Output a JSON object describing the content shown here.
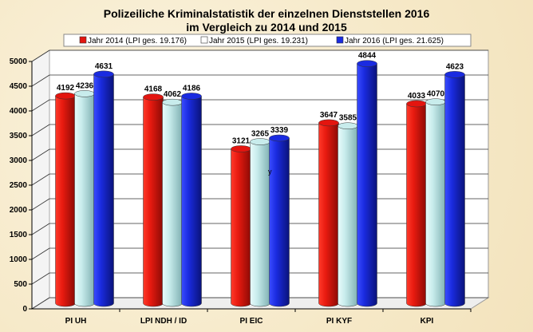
{
  "chart_data": {
    "type": "bar",
    "title": "Polizeiliche Kriminalstatistik der einzelnen Dienststellen 2016",
    "subtitle": "im Vergleich zu 2014 und 2015",
    "categories": [
      "PI UH",
      "LPI NDH / ID",
      "PI EIC",
      "PI KYF",
      "KPI"
    ],
    "series": [
      {
        "name": "Jahr 2014 (LPI ges. 19.176)",
        "color": "#e3150f",
        "values": [
          4192,
          4168,
          3121,
          3647,
          4033
        ]
      },
      {
        "name": "Jahr 2015 (LPI ges. 19.231)",
        "color": "#c8ecec",
        "values": [
          4236,
          4062,
          3265,
          3585,
          4070
        ]
      },
      {
        "name": "Jahr 2016 (LPI ges. 21.625)",
        "color": "#1a2be0",
        "values": [
          4631,
          4186,
          3339,
          4844,
          4623
        ]
      }
    ],
    "yticks": [
      0,
      500,
      1000,
      1500,
      2000,
      2500,
      3000,
      3500,
      4000,
      4500,
      5000
    ],
    "ylim": [
      0,
      5000
    ],
    "grid": true,
    "legend": "top",
    "style": "3d-cylinder",
    "annotations": [
      "y"
    ]
  }
}
